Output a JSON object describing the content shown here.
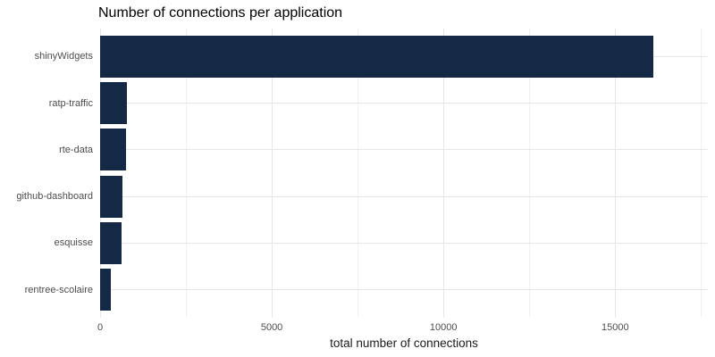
{
  "chart_data": {
    "type": "bar",
    "orientation": "horizontal",
    "title": "Number of connections per application",
    "xlabel": "total number of connections",
    "ylabel": "",
    "categories": [
      "shinyWidgets",
      "ratp-traffic",
      "rte-data",
      "github-dashboard",
      "esquisse",
      "rentree-scolaire"
    ],
    "values": [
      16100,
      780,
      755,
      640,
      615,
      320
    ],
    "xlim": [
      0,
      17700
    ],
    "x_ticks": [
      0,
      5000,
      10000,
      15000
    ],
    "x_minor_ticks": [
      2500,
      7500,
      12500,
      17500
    ],
    "grid": true,
    "legend": false
  },
  "colors": {
    "background": "#ffffff",
    "bar": "#132946",
    "grid_major": "#e6e6e6",
    "grid_minor": "#f0f0f0",
    "axis_text": "#4d4d4d",
    "title_text": "#000000",
    "axis_title_text": "#1a1a1a"
  }
}
